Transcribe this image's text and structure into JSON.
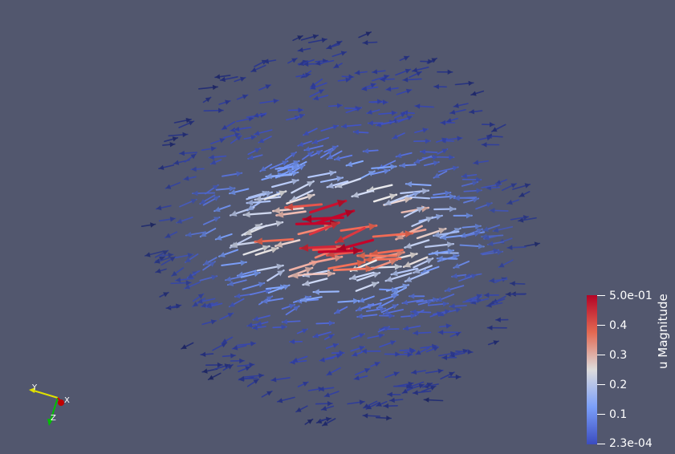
{
  "viewport": {
    "background": "#52576e",
    "glyph_type": "arrow",
    "glyph_count_estimate": 520,
    "scalar_range": [
      0.00023,
      0.5
    ]
  },
  "scalar_bar": {
    "title": "u Magnitude",
    "labels": [
      "5.0e-01",
      "0.4",
      "0.3",
      "0.2",
      "0.1",
      "2.3e-04"
    ],
    "colormap": "Cool to Warm",
    "colors": {
      "high": "#b40426",
      "mid_high": "#e26952",
      "mid": "#dddcdc",
      "mid_low": "#7b9ff9",
      "low": "#3b4cc0"
    }
  },
  "orientation_axes": {
    "x_label": "X",
    "y_label": "Y",
    "z_label": "Z",
    "colors": {
      "x": "#d40000",
      "y": "#e0e000",
      "z": "#00c000"
    }
  }
}
